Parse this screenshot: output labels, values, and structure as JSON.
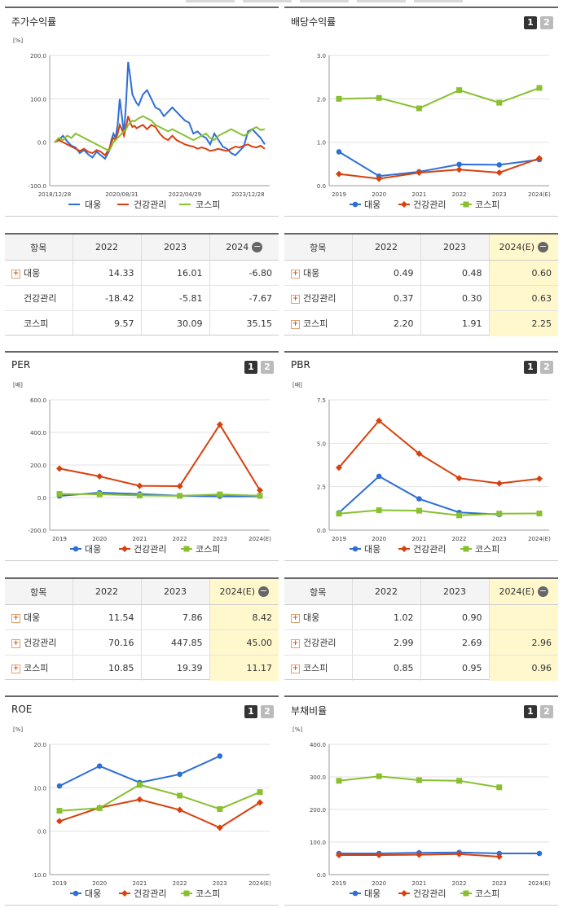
{
  "colors": {
    "daewoong": "#2e6fd6",
    "health": "#d8400e",
    "kospi": "#88c030"
  },
  "legend": [
    "대웅",
    "건강관리",
    "코스피"
  ],
  "buttons": [
    "1",
    "2"
  ],
  "panels": [
    {
      "id": "price",
      "title": "주가수익률",
      "unit": "[%]",
      "buttons": false,
      "chart_data": {
        "type": "line",
        "ylim": [
          -100,
          200
        ],
        "yticks": [
          "200.0",
          "100.0",
          "0.0",
          "-100.0"
        ],
        "ytick_values": [
          200,
          100,
          0,
          -100
        ],
        "xticks": [
          "2018/12/28",
          "2020/08/31",
          "2022/04/29",
          "2023/12/28"
        ],
        "xtick_pos": [
          0,
          0.32,
          0.62,
          0.92
        ],
        "x": [
          0,
          0.02,
          0.04,
          0.06,
          0.08,
          0.1,
          0.12,
          0.14,
          0.16,
          0.18,
          0.2,
          0.22,
          0.24,
          0.26,
          0.27,
          0.28,
          0.29,
          0.3,
          0.31,
          0.32,
          0.33,
          0.34,
          0.35,
          0.36,
          0.37,
          0.38,
          0.39,
          0.4,
          0.42,
          0.44,
          0.46,
          0.48,
          0.5,
          0.52,
          0.54,
          0.56,
          0.58,
          0.6,
          0.62,
          0.64,
          0.66,
          0.68,
          0.7,
          0.72,
          0.74,
          0.76,
          0.78,
          0.8,
          0.82,
          0.84,
          0.86,
          0.88,
          0.9,
          0.92,
          0.94,
          0.96,
          0.98,
          1.0
        ],
        "series": [
          {
            "name": "대웅",
            "values": [
              0,
              5,
              15,
              2,
              -8,
              -12,
              -25,
              -18,
              -28,
              -35,
              -22,
              -30,
              -38,
              -20,
              5,
              20,
              10,
              40,
              100,
              60,
              20,
              90,
              185,
              150,
              110,
              100,
              90,
              85,
              110,
              120,
              100,
              80,
              75,
              60,
              70,
              80,
              70,
              60,
              50,
              45,
              20,
              25,
              15,
              10,
              -5,
              20,
              5,
              -10,
              -15,
              -25,
              -30,
              -20,
              -10,
              25,
              30,
              20,
              10,
              -5
            ]
          },
          {
            "name": "건강관리",
            "values": [
              0,
              5,
              0,
              -5,
              -10,
              -15,
              -20,
              -15,
              -22,
              -25,
              -18,
              -22,
              -30,
              -15,
              0,
              10,
              5,
              20,
              40,
              30,
              15,
              35,
              60,
              45,
              35,
              38,
              32,
              35,
              40,
              30,
              40,
              35,
              20,
              10,
              5,
              15,
              5,
              0,
              -5,
              -8,
              -10,
              -15,
              -12,
              -15,
              -20,
              -18,
              -15,
              -18,
              -20,
              -15,
              -10,
              -12,
              -8,
              -5,
              -10,
              -12,
              -8,
              -15
            ]
          },
          {
            "name": "코스피",
            "values": [
              0,
              10,
              5,
              15,
              10,
              20,
              15,
              10,
              5,
              0,
              -5,
              -10,
              -15,
              -20,
              -10,
              0,
              5,
              10,
              15,
              20,
              25,
              30,
              40,
              45,
              50,
              48,
              52,
              55,
              60,
              55,
              50,
              40,
              35,
              30,
              25,
              30,
              25,
              20,
              15,
              10,
              5,
              10,
              15,
              20,
              10,
              5,
              15,
              20,
              25,
              30,
              25,
              20,
              15,
              20,
              30,
              35,
              28,
              30
            ]
          }
        ]
      }
    },
    {
      "id": "dividend",
      "title": "배당수익률",
      "unit": "",
      "buttons": true,
      "chart_data": {
        "type": "line",
        "ylim": [
          0,
          3
        ],
        "yticks": [
          "3.0",
          "2.0",
          "1.0",
          "0.0"
        ],
        "ytick_values": [
          3,
          2,
          1,
          0
        ],
        "categories": [
          "2019",
          "2020",
          "2021",
          "2022",
          "2023",
          "2024(E)"
        ],
        "series": [
          {
            "name": "대웅",
            "values": [
              0.78,
              0.22,
              0.32,
              0.49,
              0.48,
              0.6
            ]
          },
          {
            "name": "건강관리",
            "values": [
              0.27,
              0.16,
              0.3,
              0.37,
              0.3,
              0.63
            ]
          },
          {
            "name": "코스피",
            "values": [
              2.0,
              2.02,
              1.78,
              2.2,
              1.91,
              2.25
            ]
          }
        ]
      }
    },
    {
      "id": "per",
      "title": "PER",
      "unit": "[배]",
      "buttons": true,
      "chart_data": {
        "type": "line",
        "ylim": [
          -200,
          600
        ],
        "yticks": [
          "600.0",
          "400.0",
          "200.0",
          "0.0",
          "-200.0"
        ],
        "ytick_values": [
          600,
          400,
          200,
          0,
          -200
        ],
        "categories": [
          "2019",
          "2020",
          "2021",
          "2022",
          "2023",
          "2024(E)"
        ],
        "series": [
          {
            "name": "대웅",
            "values": [
              10,
              30,
              22,
              11.54,
              7.86,
              8.42
            ]
          },
          {
            "name": "건강관리",
            "values": [
              178,
              130,
              72,
              70.16,
              447.85,
              45.0
            ]
          },
          {
            "name": "코스피",
            "values": [
              22,
              20,
              13,
              10.85,
              19.39,
              11.17
            ]
          }
        ]
      }
    },
    {
      "id": "pbr",
      "title": "PBR",
      "unit": "[배]",
      "buttons": true,
      "chart_data": {
        "type": "line",
        "ylim": [
          0,
          7.5
        ],
        "yticks": [
          "7.5",
          "5.0",
          "2.5",
          "0.0"
        ],
        "ytick_values": [
          7.5,
          5.0,
          2.5,
          0
        ],
        "categories": [
          "2019",
          "2020",
          "2021",
          "2022",
          "2023",
          "2024(E)"
        ],
        "series": [
          {
            "name": "대웅",
            "values": [
              1.0,
              3.1,
              1.8,
              1.02,
              0.9,
              null
            ]
          },
          {
            "name": "건강관리",
            "values": [
              3.6,
              6.3,
              4.4,
              2.99,
              2.69,
              2.96
            ]
          },
          {
            "name": "코스피",
            "values": [
              0.95,
              1.15,
              1.12,
              0.85,
              0.95,
              0.96
            ]
          }
        ]
      }
    },
    {
      "id": "roe",
      "title": "ROE",
      "unit": "[%]",
      "buttons": true,
      "chart_data": {
        "type": "line",
        "ylim": [
          -10,
          20
        ],
        "yticks": [
          "20.0",
          "10.0",
          "0.0",
          "-10.0"
        ],
        "ytick_values": [
          20,
          10,
          0,
          -10
        ],
        "categories": [
          "2019",
          "2020",
          "2021",
          "2022",
          "2023",
          "2024(E)"
        ],
        "series": [
          {
            "name": "대웅",
            "values": [
              10.4,
              15.0,
              11.2,
              13.1,
              17.3,
              null
            ]
          },
          {
            "name": "건강관리",
            "values": [
              2.3,
              5.4,
              7.3,
              4.9,
              0.8,
              6.6
            ]
          },
          {
            "name": "코스피",
            "values": [
              4.7,
              5.3,
              10.7,
              8.2,
              5.1,
              9.0
            ]
          }
        ]
      }
    },
    {
      "id": "debt",
      "title": "부채비율",
      "unit": "[%]",
      "buttons": true,
      "chart_data": {
        "type": "line",
        "ylim": [
          0,
          400
        ],
        "yticks": [
          "400.0",
          "300.0",
          "200.0",
          "100.0",
          "0.0"
        ],
        "ytick_values": [
          400,
          300,
          200,
          100,
          0
        ],
        "categories": [
          "2019",
          "2020",
          "2021",
          "2022",
          "2023",
          "2024(E)"
        ],
        "series": [
          {
            "name": "대웅",
            "values": [
              65,
              65,
              67,
              68,
              65,
              65
            ]
          },
          {
            "name": "건강관리",
            "values": [
              60,
              60,
              61,
              63,
              55,
              null
            ]
          },
          {
            "name": "코스피",
            "values": [
              288,
              302,
              290,
              288,
              268,
              null
            ]
          }
        ]
      }
    }
  ],
  "tables": [
    {
      "id": "price_tbl",
      "headers": [
        "항목",
        "2022",
        "2023",
        "2024"
      ],
      "highlight_last": false,
      "rows": [
        {
          "plus": true,
          "name": "대웅",
          "values": [
            "14.33",
            "16.01",
            "-6.80"
          ]
        },
        {
          "plus": false,
          "name": "건강관리",
          "values": [
            "-18.42",
            "-5.81",
            "-7.67"
          ]
        },
        {
          "plus": false,
          "name": "코스피",
          "values": [
            "9.57",
            "30.09",
            "35.15"
          ]
        }
      ]
    },
    {
      "id": "div_tbl",
      "headers": [
        "항목",
        "2022",
        "2023",
        "2024(E)"
      ],
      "highlight_last": true,
      "rows": [
        {
          "plus": true,
          "name": "대웅",
          "values": [
            "0.49",
            "0.48",
            "0.60"
          ]
        },
        {
          "plus": true,
          "name": "건강관리",
          "values": [
            "0.37",
            "0.30",
            "0.63"
          ]
        },
        {
          "plus": true,
          "name": "코스피",
          "values": [
            "2.20",
            "1.91",
            "2.25"
          ]
        }
      ]
    },
    {
      "id": "per_tbl",
      "headers": [
        "항목",
        "2022",
        "2023",
        "2024(E)"
      ],
      "highlight_last": true,
      "rows": [
        {
          "plus": true,
          "name": "대웅",
          "values": [
            "11.54",
            "7.86",
            "8.42"
          ]
        },
        {
          "plus": true,
          "name": "건강관리",
          "values": [
            "70.16",
            "447.85",
            "45.00"
          ]
        },
        {
          "plus": true,
          "name": "코스피",
          "values": [
            "10.85",
            "19.39",
            "11.17"
          ]
        }
      ]
    },
    {
      "id": "pbr_tbl",
      "headers": [
        "항목",
        "2022",
        "2023",
        "2024(E)"
      ],
      "highlight_last": true,
      "rows": [
        {
          "plus": true,
          "name": "대웅",
          "values": [
            "1.02",
            "0.90",
            ""
          ]
        },
        {
          "plus": true,
          "name": "건강관리",
          "values": [
            "2.99",
            "2.69",
            "2.96"
          ]
        },
        {
          "plus": true,
          "name": "코스피",
          "values": [
            "0.85",
            "0.95",
            "0.96"
          ]
        }
      ]
    }
  ]
}
